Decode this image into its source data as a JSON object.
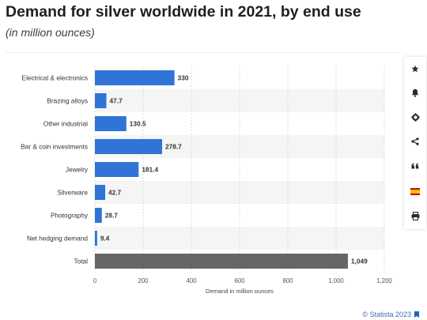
{
  "header": {
    "title": "Demand for silver worldwide in 2021, by end use",
    "subtitle": "(in million ounces)"
  },
  "footer": {
    "source": "© Statista 2023"
  },
  "toolbar": {
    "buttons": [
      "star-icon",
      "bell-icon",
      "gear-icon",
      "share-icon",
      "quote-icon",
      "flag-icon",
      "print-icon"
    ]
  },
  "colors": {
    "bar": "#2f74d6",
    "total_bar": "#666666",
    "stripe": "#f5f5f5",
    "grid": "#d9d9d9"
  },
  "chart_data": {
    "type": "bar",
    "orientation": "horizontal",
    "categories": [
      "Electrical & electronics",
      "Brazing alloys",
      "Other industrial",
      "Bar & coin investments",
      "Jewelry",
      "Silverware",
      "Photography",
      "Net hedging demand",
      "Total"
    ],
    "values": [
      330,
      47.7,
      130.5,
      278.7,
      181.4,
      42.7,
      28.7,
      9.4,
      1049
    ],
    "value_labels": [
      "330",
      "47.7",
      "130.5",
      "278.7",
      "181.4",
      "42.7",
      "28.7",
      "9.4",
      "1,049"
    ],
    "xlabel": "Demand in million ounces",
    "ylabel": "",
    "xlim": [
      0,
      1200
    ],
    "xticks": [
      0,
      200,
      400,
      600,
      800,
      1000,
      1200
    ],
    "xtick_labels": [
      "0",
      "200",
      "400",
      "600",
      "800",
      "1,000",
      "1,200"
    ],
    "grid": true
  }
}
